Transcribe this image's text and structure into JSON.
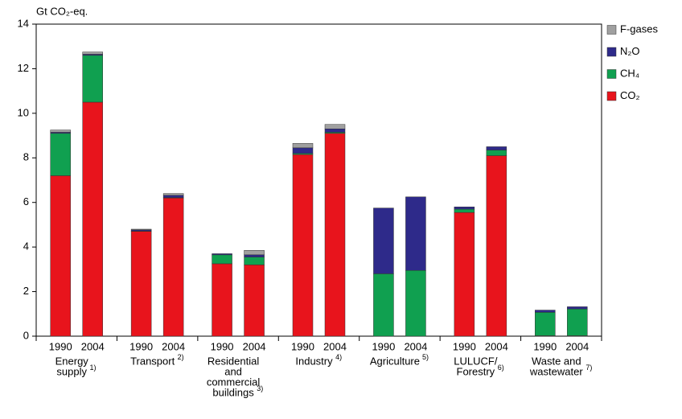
{
  "chart_data": {
    "type": "stacked_bar",
    "ylabel": "Gt CO₂-eq.",
    "categories": [
      "1990",
      "2004",
      "1990",
      "2004",
      "1990",
      "2004",
      "1990",
      "2004",
      "1990",
      "2004",
      "1990",
      "2004",
      "1990",
      "2004"
    ],
    "groups": [
      {
        "lines": [
          "Energy",
          "supply"
        ],
        "note": "1)"
      },
      {
        "lines": [
          "Transport"
        ],
        "note": "2)"
      },
      {
        "lines": [
          "Residential",
          "and",
          "commercial",
          "buildings"
        ],
        "note": "3)"
      },
      {
        "lines": [
          "Industry"
        ],
        "note": "4)"
      },
      {
        "lines": [
          "Agriculture"
        ],
        "note": "5)"
      },
      {
        "lines": [
          "LULUCF/",
          "Forestry"
        ],
        "note": "6)"
      },
      {
        "lines": [
          "Waste and",
          "wastewater"
        ],
        "note": "7)"
      }
    ],
    "series": [
      {
        "name": "CO₂",
        "color": "#e8141c",
        "values": [
          7.2,
          10.5,
          4.7,
          6.2,
          3.25,
          3.2,
          8.15,
          9.1,
          0,
          0,
          5.55,
          8.1,
          0.02,
          0.02
        ]
      },
      {
        "name": "CH₄",
        "color": "#10a050",
        "values": [
          1.9,
          2.1,
          0.02,
          0.02,
          0.4,
          0.35,
          0.05,
          0.05,
          2.8,
          2.95,
          0.15,
          0.25,
          1.05,
          1.2
        ]
      },
      {
        "name": "N₂O",
        "color": "#2e2a8a",
        "values": [
          0.05,
          0.05,
          0.05,
          0.1,
          0.05,
          0.1,
          0.25,
          0.15,
          2.95,
          3.3,
          0.1,
          0.15,
          0.1,
          0.1
        ]
      },
      {
        "name": "F-gases",
        "color": "#a0a0a0",
        "values": [
          0.1,
          0.1,
          0.03,
          0.08,
          0,
          0.2,
          0.2,
          0.2,
          0,
          0,
          0,
          0,
          0,
          0
        ]
      }
    ],
    "ylim": [
      0,
      14
    ],
    "yticks": [
      0,
      2,
      4,
      6,
      8,
      10,
      12,
      14
    ],
    "legend": "right"
  }
}
